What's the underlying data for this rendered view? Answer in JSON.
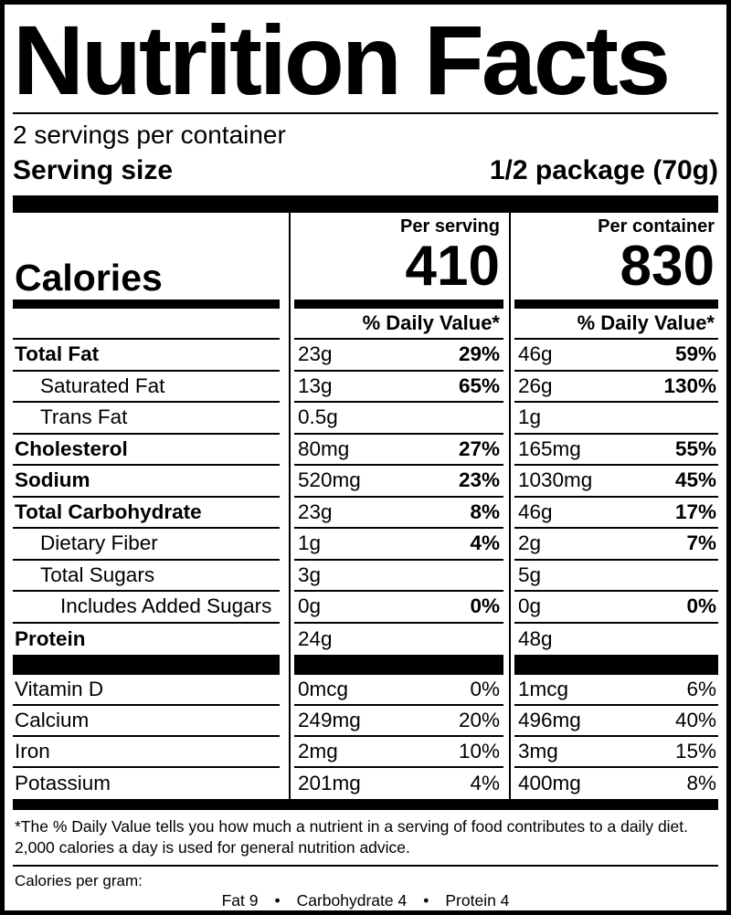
{
  "nutrition_label": {
    "title": "Nutrition Facts",
    "servings_per_container": "2 servings per container",
    "serving_size": {
      "label": "Serving size",
      "value": "1/2 package (70g)"
    },
    "calories": {
      "label": "Calories",
      "per_serving_header": "Per serving",
      "per_container_header": "Per container",
      "per_serving_value": "410",
      "per_container_value": "830"
    },
    "daily_value_header": "% Daily Value*",
    "nutrients": [
      {
        "name": "Total Fat",
        "serving_amount": "23g",
        "serving_dv": "29%",
        "container_amount": "46g",
        "container_dv": "59%"
      },
      {
        "name": "Saturated Fat",
        "serving_amount": "13g",
        "serving_dv": "65%",
        "container_amount": "26g",
        "container_dv": "130%"
      },
      {
        "name": "Trans Fat",
        "serving_amount": "0.5g",
        "serving_dv": "",
        "container_amount": "1g",
        "container_dv": ""
      },
      {
        "name": "Cholesterol",
        "serving_amount": "80mg",
        "serving_dv": "27%",
        "container_amount": "165mg",
        "container_dv": "55%"
      },
      {
        "name": "Sodium",
        "serving_amount": "520mg",
        "serving_dv": "23%",
        "container_amount": "1030mg",
        "container_dv": "45%"
      },
      {
        "name": "Total Carbohydrate",
        "serving_amount": "23g",
        "serving_dv": "8%",
        "container_amount": "46g",
        "container_dv": "17%"
      },
      {
        "name": "Dietary Fiber",
        "serving_amount": "1g",
        "serving_dv": "4%",
        "container_amount": "2g",
        "container_dv": "7%"
      },
      {
        "name": "Total Sugars",
        "serving_amount": "3g",
        "serving_dv": "",
        "container_amount": "5g",
        "container_dv": ""
      },
      {
        "name": "Includes Added Sugars",
        "serving_amount": "0g",
        "serving_dv": "0%",
        "container_amount": "0g",
        "container_dv": "0%"
      },
      {
        "name": "Protein",
        "serving_amount": "24g",
        "serving_dv": "",
        "container_amount": "48g",
        "container_dv": ""
      }
    ],
    "vitamins": [
      {
        "name": "Vitamin D",
        "serving_amount": "0mcg",
        "serving_dv": "0%",
        "container_amount": "1mcg",
        "container_dv": "6%"
      },
      {
        "name": "Calcium",
        "serving_amount": "249mg",
        "serving_dv": "20%",
        "container_amount": "496mg",
        "container_dv": "40%"
      },
      {
        "name": "Iron",
        "serving_amount": "2mg",
        "serving_dv": "10%",
        "container_amount": "3mg",
        "container_dv": "15%"
      },
      {
        "name": "Potassium",
        "serving_amount": "201mg",
        "serving_dv": "4%",
        "container_amount": "400mg",
        "container_dv": "8%"
      }
    ],
    "footnote_line1": "*The % Daily Value tells you how much a nutrient in a serving of food contributes to a daily diet.",
    "footnote_line2": "2,000 calories a day is used for general nutrition advice.",
    "calories_per_gram": {
      "label": "Calories per gram:",
      "fat": "Fat 9",
      "carbohydrate": "Carbohydrate 4",
      "protein": "Protein 4",
      "separator": "•"
    }
  }
}
